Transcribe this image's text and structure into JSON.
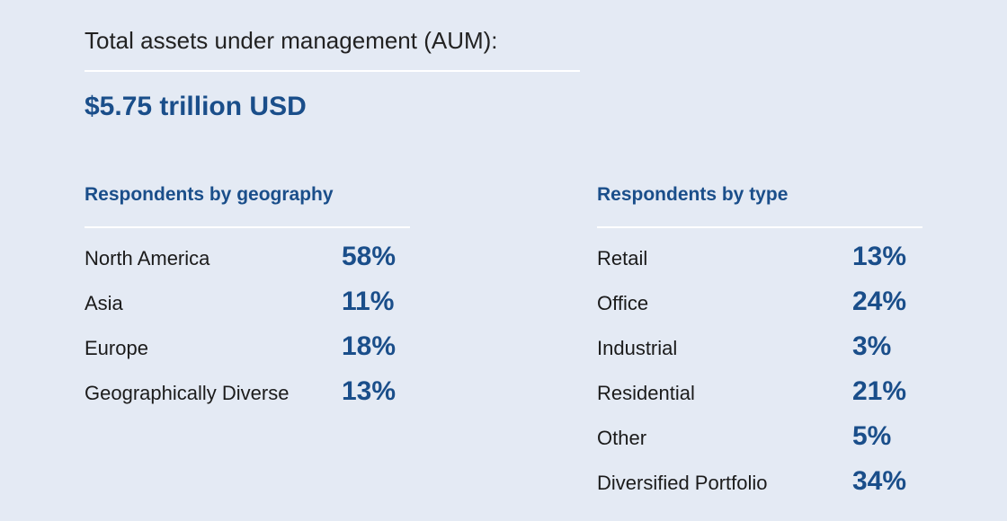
{
  "aum": {
    "title": "Total assets under management (AUM):",
    "value": "$5.75 trillion USD"
  },
  "geography": {
    "title": "Respondents by geography",
    "rows": [
      {
        "label": "North America",
        "value": "58%"
      },
      {
        "label": "Asia",
        "value": "11%"
      },
      {
        "label": "Europe",
        "value": "18%"
      },
      {
        "label": "Geographically Diverse",
        "value": "13%"
      }
    ]
  },
  "type": {
    "title": "Respondents by type",
    "rows": [
      {
        "label": "Retail",
        "value": "13%"
      },
      {
        "label": "Office",
        "value": "24%"
      },
      {
        "label": "Industrial",
        "value": "3%"
      },
      {
        "label": "Residential",
        "value": "21%"
      },
      {
        "label": "Other",
        "value": "5%"
      },
      {
        "label": "Diversified Portfolio",
        "value": "34%"
      }
    ]
  },
  "colors": {
    "background": "#e4eaf4",
    "accent": "#1a4e8a",
    "rule": "#ffffff",
    "text": "#1b1b1b"
  }
}
